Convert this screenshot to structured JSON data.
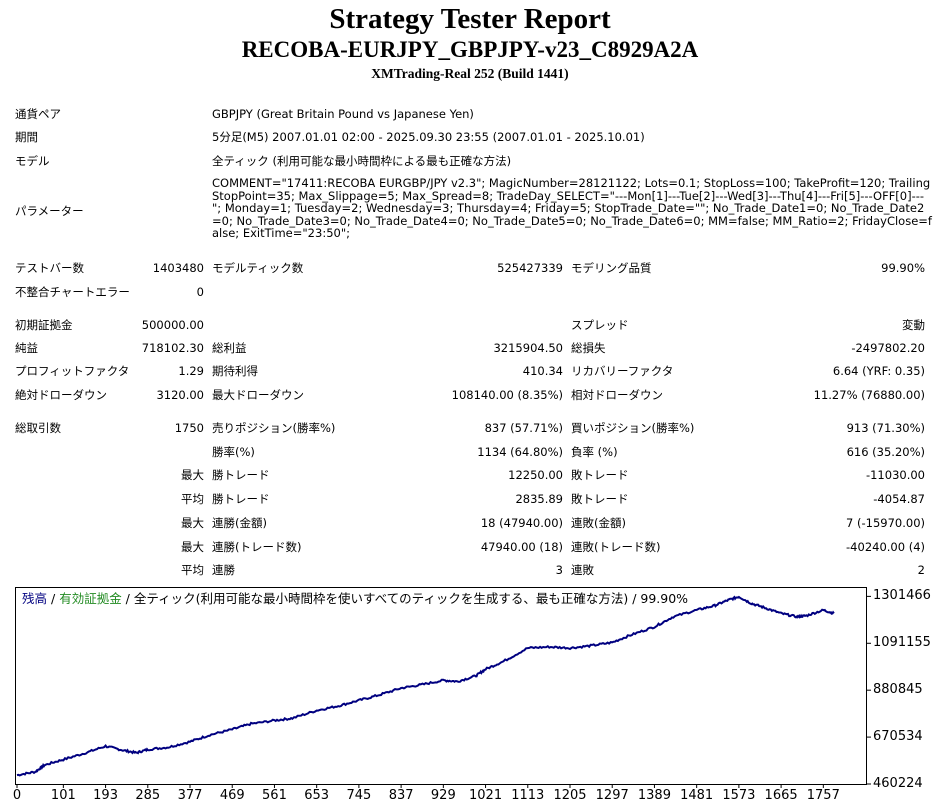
{
  "header": {
    "title": "Strategy Tester Report",
    "ea_name": "RECOBA-EURJPY_GBPJPY-v23_C8929A2A",
    "server": "XMTrading-Real 252 (Build 1441)"
  },
  "info": {
    "symbol_label": "通貨ペア",
    "symbol_value": "GBPJPY (Great Britain Pound vs Japanese Yen)",
    "period_label": "期間",
    "period_value": "5分足(M5) 2007.01.01 02:00 - 2025.09.30 23:55 (2007.01.01 - 2025.10.01)",
    "model_label": "モデル",
    "model_value": "全ティック (利用可能な最小時間枠による最も正確な方法)",
    "params_label": "パラメーター",
    "params_value": "COMMENT=\"17411:RECOBA EURGBP/JPY v2.3\"; MagicNumber=28121122; Lots=0.1; StopLoss=100; TakeProfit=120; TrailingStopPoint=35; Max_Slippage=5; Max_Spread=8; TradeDay_SELECT=\"---Mon[1]---Tue[2]---Wed[3]---Thu[4]---Fri[5]---OFF[0]---\"; Monday=1; Tuesday=2; Wednesday=3; Thursday=4; Friday=5; StopTrade_Date=\"\"; No_Trade_Date1=0; No_Trade_Date2=0; No_Trade_Date3=0; No_Trade_Date4=0; No_Trade_Date5=0; No_Trade_Date6=0; MM=false; MM_Ratio=2; FridayClose=false; ExitTime=\"23:50\";"
  },
  "tests": {
    "bars_label": "テストバー数",
    "bars_value": "1403480",
    "ticks_label": "モデルティック数",
    "ticks_value": "525427339",
    "quality_label": "モデリング品質",
    "quality_value": "99.90%",
    "mismatch_label": "不整合チャートエラー",
    "mismatch_value": "0"
  },
  "summary": {
    "deposit_label": "初期証拠金",
    "deposit_value": "500000.00",
    "spread_label": "スプレッド",
    "spread_value": "変動",
    "net_label": "純益",
    "net_value": "718102.30",
    "gross_profit_label": "総利益",
    "gross_profit_value": "3215904.50",
    "gross_loss_label": "総損失",
    "gross_loss_value": "-2497802.20",
    "pf_label": "プロフィットファクタ",
    "pf_value": "1.29",
    "payoff_label": "期待利得",
    "payoff_value": "410.34",
    "recovery_label": "リカバリーファクタ",
    "recovery_value": "6.64 (YRF: 0.35)",
    "abs_dd_label": "絶対ドローダウン",
    "abs_dd_value": "3120.00",
    "max_dd_label": "最大ドローダウン",
    "max_dd_value": "108140.00 (8.35%)",
    "rel_dd_label": "相対ドローダウン",
    "rel_dd_value": "11.27% (76880.00)"
  },
  "trades": {
    "total_label": "総取引数",
    "total_value": "1750",
    "short_label": "売りポジション(勝率%)",
    "short_value": "837 (57.71%)",
    "long_label": "買いポジション(勝率%)",
    "long_value": "913 (71.30%)",
    "winrate_label": "勝率(%)",
    "winrate_value": "1134 (64.80%)",
    "lossrate_label": "負率 (%)",
    "lossrate_value": "616 (35.20%)",
    "max_label": "最大",
    "avg_label": "平均",
    "largest_win_label": "勝トレード",
    "largest_win_value": "12250.00",
    "largest_loss_label": "敗トレード",
    "largest_loss_value": "-11030.00",
    "avg_win_label": "勝トレード",
    "avg_win_value": "2835.89",
    "avg_loss_label": "敗トレード",
    "avg_loss_value": "-4054.87",
    "max_consec_wins_label": "連勝(金額)",
    "max_consec_wins_value": "18 (47940.00)",
    "max_consec_losses_label": "連敗(金額)",
    "max_consec_losses_value": "7 (-15970.00)",
    "max_consec_profit_label": "連勝(トレード数)",
    "max_consec_profit_value": "47940.00 (18)",
    "max_consec_loss_label": "連敗(トレード数)",
    "max_consec_loss_value": "-40240.00 (4)",
    "avg_consec_wins_label": "連勝",
    "avg_consec_wins_value": "3",
    "avg_consec_losses_label": "連敗",
    "avg_consec_losses_value": "2"
  },
  "chart_legend": {
    "balance": "残高",
    "sep1": " / ",
    "equity": "有効証拠金",
    "rest": " / 全ティック(利用可能な最小時間枠を使いすべてのティックを生成する、最も正確な方法) / 99.90%"
  },
  "colors": {
    "balance": "#000080",
    "equity": "#228b22",
    "frame": "#000000"
  },
  "chart_data": {
    "type": "line",
    "x_ticks": [
      0,
      101,
      193,
      285,
      377,
      469,
      561,
      653,
      745,
      837,
      929,
      1021,
      1113,
      1205,
      1297,
      1389,
      1481,
      1573,
      1665,
      1757
    ],
    "x_tick_labels": [
      "0",
      "101",
      "193",
      "285",
      "377",
      "469",
      "561",
      "653",
      "745",
      "837",
      "929",
      "1021",
      "1113",
      "1205",
      "1297",
      "1389",
      "1481",
      "1573",
      "1665",
      "1757"
    ],
    "y_ticks": [
      460224,
      670534,
      880845,
      1091155,
      1301466
    ],
    "y_tick_labels": [
      "460224",
      "670534",
      "880845",
      "1091155",
      "1301466"
    ],
    "xlim": [
      0,
      1850
    ],
    "ylim": [
      460224,
      1339000
    ],
    "grid": false,
    "series": [
      {
        "x": [
          0,
          40,
          60,
          101,
          150,
          193,
          230,
          260,
          285,
          330,
          377,
          420,
          469,
          510,
          561,
          600,
          653,
          700,
          745,
          790,
          837,
          880,
          929,
          960,
          1000,
          1021,
          1060,
          1113,
          1160,
          1205,
          1250,
          1297,
          1340,
          1389,
          1430,
          1481,
          1520,
          1550,
          1573,
          1600,
          1630,
          1665,
          1700,
          1720,
          1757,
          1780
        ],
        "y": [
          500000,
          515000,
          545000,
          570000,
          600000,
          630000,
          612000,
          600000,
          615000,
          625000,
          650000,
          680000,
          705000,
          730000,
          745000,
          755000,
          790000,
          810000,
          835000,
          860000,
          890000,
          905000,
          925000,
          920000,
          945000,
          975000,
          1010000,
          1070000,
          1075000,
          1070000,
          1080000,
          1095000,
          1130000,
          1165000,
          1210000,
          1240000,
          1260000,
          1285000,
          1300000,
          1270000,
          1250000,
          1225000,
          1210000,
          1215000,
          1240000,
          1225000
        ]
      }
    ]
  }
}
